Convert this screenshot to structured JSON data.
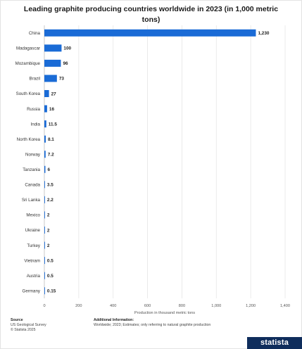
{
  "title": "Leading graphite producing countries worldwide in 2023 (in 1,000 metric tons)",
  "chart_data": {
    "type": "bar",
    "orientation": "horizontal",
    "categories": [
      "China",
      "Madagascar",
      "Mozambique",
      "Brazil",
      "South Korea",
      "Russia",
      "India",
      "North Korea",
      "Norway",
      "Tanzania",
      "Canada",
      "Sri Lanka",
      "Mexico",
      "Ukraine",
      "Turkey",
      "Vietnam",
      "Austria",
      "Germany"
    ],
    "values": [
      1230,
      100,
      96,
      73,
      27,
      16,
      11.5,
      8.1,
      7.2,
      6,
      3.5,
      2.2,
      2,
      2,
      2,
      0.5,
      0.5,
      0.15
    ],
    "value_labels": [
      "1,230",
      "100",
      "96",
      "73",
      "27",
      "16",
      "11.5",
      "8.1",
      "7.2",
      "6",
      "3.5",
      "2.2",
      "2",
      "2",
      "2",
      "0.5",
      "0.5",
      "0.15"
    ],
    "xlim": [
      0,
      1400
    ],
    "xticks": [
      0,
      200,
      400,
      600,
      800,
      1000,
      1200,
      1400
    ],
    "xtick_labels": [
      "0",
      "200",
      "400",
      "600",
      "800",
      "1,000",
      "1,200",
      "1,400"
    ],
    "xlabel": "Production in thousand metric tons",
    "grid": true,
    "bar_color": "#1a6bd6"
  },
  "footer": {
    "source_heading": "Source",
    "source_line1": "US Geological Survey",
    "source_line2": "© Statista 2025",
    "info_heading": "Additional Information:",
    "info_text": "Worldwide; 2023; Estimates; only referring to natural graphite production"
  },
  "brand": "statista",
  "brand_color": "#0f2d5c"
}
